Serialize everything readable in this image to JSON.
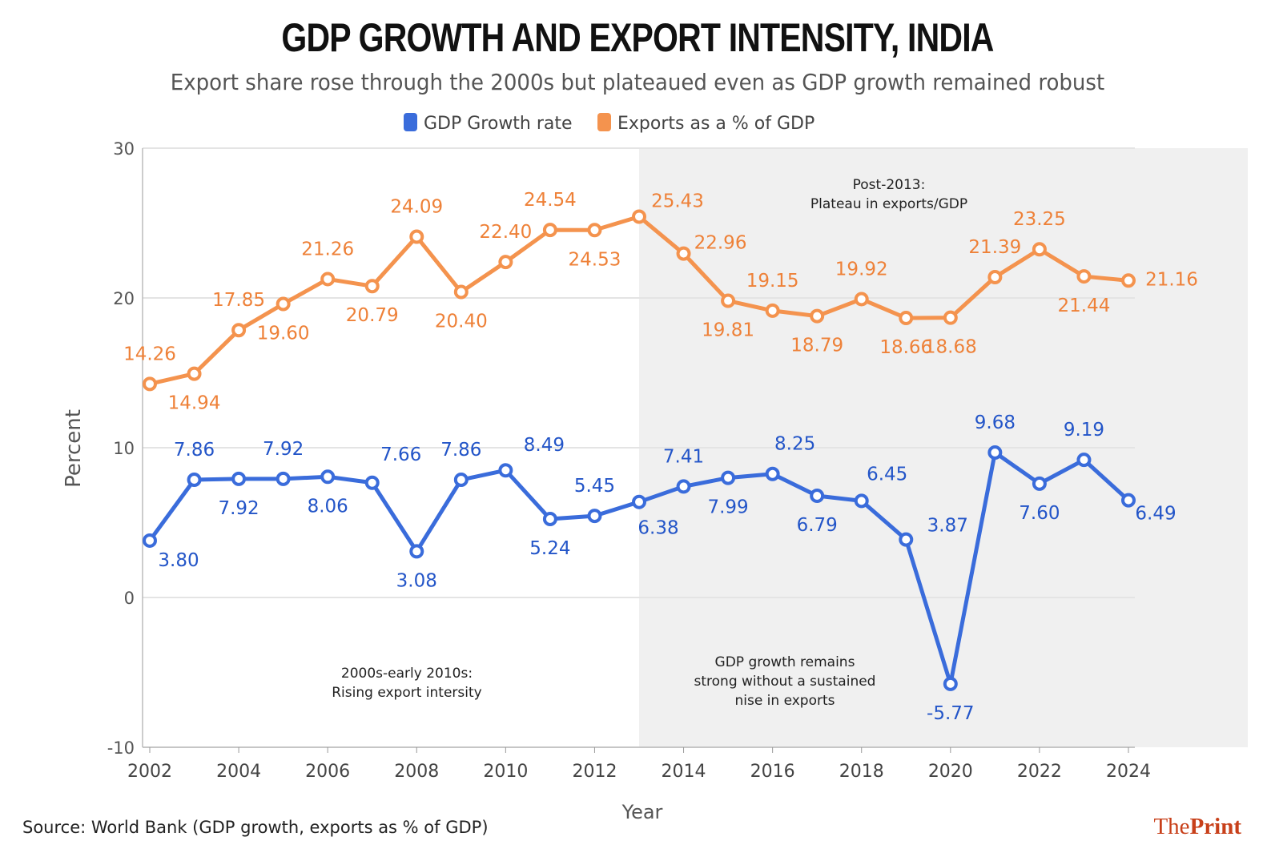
{
  "chart_data": {
    "type": "line",
    "title": "GDP GROWTH AND EXPORT INTENSITY, INDIA",
    "subtitle": "Export share rose through the 2000s but plateaued even as GDP growth remained robust",
    "xlabel": "Year",
    "ylabel": "Percent",
    "xlim": [
      2002,
      2024
    ],
    "ylim": [
      -10,
      30
    ],
    "xticks": [
      2002,
      2004,
      2006,
      2008,
      2010,
      2012,
      2014,
      2016,
      2018,
      2020,
      2022,
      2024
    ],
    "yticks": [
      -10,
      0,
      10,
      20,
      30
    ],
    "grid": "horizontal",
    "legend": "top",
    "x": [
      2002,
      2003,
      2004,
      2005,
      2006,
      2007,
      2008,
      2009,
      2010,
      2011,
      2012,
      2013,
      2014,
      2015,
      2016,
      2017,
      2018,
      2019,
      2020,
      2021,
      2022,
      2023,
      2024
    ],
    "series": [
      {
        "name": "GDP Growth rate",
        "color": "#3a6cdb",
        "label_color": "#2355c8",
        "values": [
          3.8,
          7.86,
          7.92,
          7.92,
          8.06,
          7.66,
          3.08,
          7.86,
          8.49,
          5.24,
          5.45,
          6.38,
          7.41,
          7.99,
          8.25,
          6.79,
          6.45,
          3.87,
          -5.77,
          9.68,
          7.6,
          9.19,
          6.49
        ]
      },
      {
        "name": "Exports as a % of GDP",
        "color": "#f4934e",
        "label_color": "#ee8138",
        "values": [
          14.26,
          14.94,
          17.85,
          19.6,
          21.26,
          20.79,
          24.09,
          20.4,
          22.4,
          24.54,
          24.53,
          25.43,
          22.96,
          19.81,
          19.15,
          18.79,
          19.92,
          18.66,
          18.68,
          21.39,
          23.25,
          21.44,
          21.16
        ]
      }
    ],
    "shaded_region": {
      "from": 2013,
      "color": "#f0f0f0"
    },
    "annotations": [
      {
        "lines": [
          "Post-2013:",
          "Plateau in exports/GDP"
        ]
      },
      {
        "lines": [
          "2000s-early 2010s:",
          "Rising export intersity"
        ]
      },
      {
        "lines": [
          "GDP growth remains",
          "strong without a sustained",
          "nise in exports"
        ]
      }
    ]
  },
  "source": "Source: World Bank (GDP growth, exports as % of GDP)",
  "logo": {
    "the": "The",
    "print": "Print"
  }
}
